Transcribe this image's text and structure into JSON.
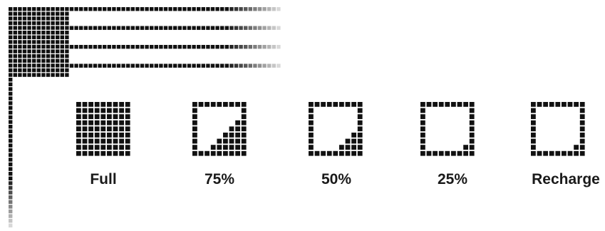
{
  "colors": {
    "pixel": "#111111",
    "background": "#ffffff",
    "fade_light": "#d8d8d8"
  },
  "decor": {
    "rows": 4
  },
  "levels": [
    {
      "label": "Full",
      "charge": 1.0,
      "icon": "battery-full-icon"
    },
    {
      "label": "75%",
      "charge": 0.75,
      "icon": "battery-75-icon"
    },
    {
      "label": "50%",
      "charge": 0.5,
      "icon": "battery-50-icon"
    },
    {
      "label": "25%",
      "charge": 0.25,
      "icon": "battery-25-icon"
    },
    {
      "label": "Recharge",
      "charge": 0.0,
      "icon": "battery-recharge-icon"
    }
  ]
}
